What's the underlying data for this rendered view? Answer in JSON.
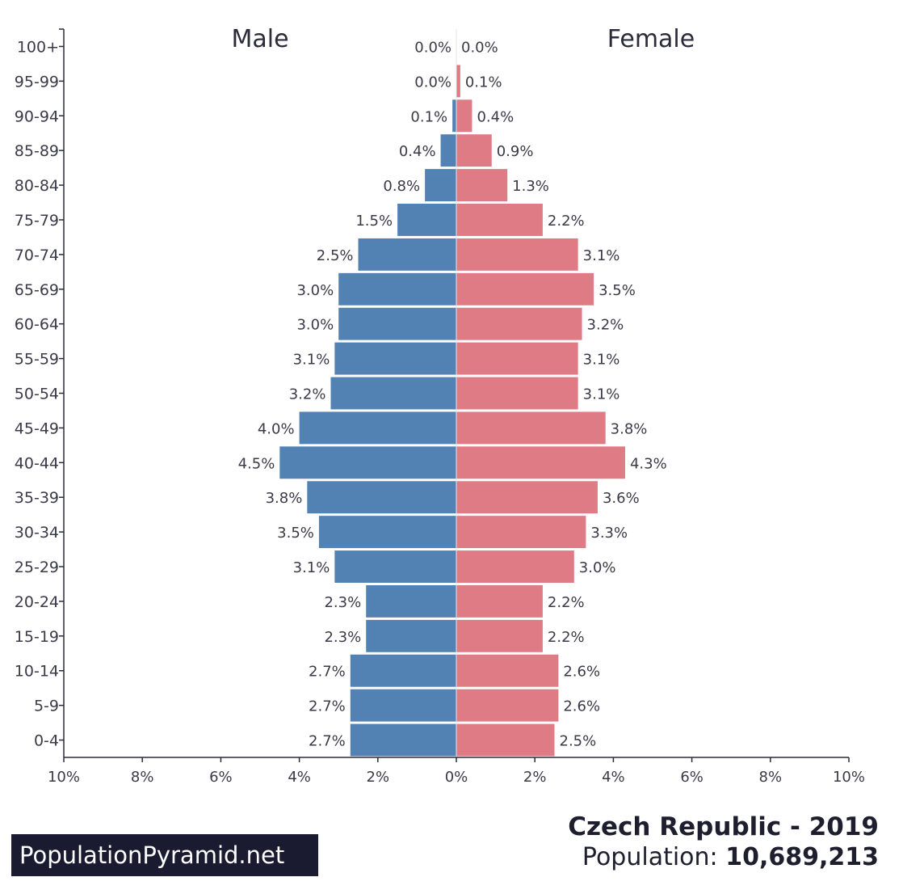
{
  "chart_data": {
    "type": "bar",
    "orientation": "horizontal-pyramid",
    "left_title": "Male",
    "right_title": "Female",
    "categories": [
      "100+",
      "95-99",
      "90-94",
      "85-89",
      "80-84",
      "75-79",
      "70-74",
      "65-69",
      "60-64",
      "55-59",
      "50-54",
      "45-49",
      "40-44",
      "35-39",
      "30-34",
      "25-29",
      "20-24",
      "15-19",
      "10-14",
      "5-9",
      "0-4"
    ],
    "series": [
      {
        "name": "Male",
        "color": "#5282b3",
        "values": [
          0.0,
          0.0,
          0.1,
          0.4,
          0.8,
          1.5,
          2.5,
          3.0,
          3.0,
          3.1,
          3.2,
          4.0,
          4.5,
          3.8,
          3.5,
          3.1,
          2.3,
          2.3,
          2.7,
          2.7,
          2.7
        ],
        "labels": [
          "0.0%",
          "0.0%",
          "0.1%",
          "0.4%",
          "0.8%",
          "1.5%",
          "2.5%",
          "3.0%",
          "3.0%",
          "3.1%",
          "3.2%",
          "4.0%",
          "4.5%",
          "3.8%",
          "3.5%",
          "3.1%",
          "2.3%",
          "2.3%",
          "2.7%",
          "2.7%",
          "2.7%"
        ]
      },
      {
        "name": "Female",
        "color": "#df7b85",
        "values": [
          0.0,
          0.1,
          0.4,
          0.9,
          1.3,
          2.2,
          3.1,
          3.5,
          3.2,
          3.1,
          3.1,
          3.8,
          4.3,
          3.6,
          3.3,
          3.0,
          2.2,
          2.2,
          2.6,
          2.6,
          2.5
        ],
        "labels": [
          "0.0%",
          "0.1%",
          "0.4%",
          "0.9%",
          "1.3%",
          "2.2%",
          "3.1%",
          "3.5%",
          "3.2%",
          "3.1%",
          "3.1%",
          "3.8%",
          "4.3%",
          "3.6%",
          "3.3%",
          "3.0%",
          "2.2%",
          "2.2%",
          "2.6%",
          "2.6%",
          "2.5%"
        ]
      }
    ],
    "xlim": [
      -10,
      10
    ],
    "x_ticks": [
      {
        "v": -10,
        "label": "10%"
      },
      {
        "v": -8,
        "label": "8%"
      },
      {
        "v": -6,
        "label": "6%"
      },
      {
        "v": -4,
        "label": "4%"
      },
      {
        "v": -2,
        "label": "2%"
      },
      {
        "v": 0,
        "label": "0%"
      },
      {
        "v": 2,
        "label": "2%"
      },
      {
        "v": 4,
        "label": "4%"
      },
      {
        "v": 6,
        "label": "6%"
      },
      {
        "v": 8,
        "label": "8%"
      },
      {
        "v": 10,
        "label": "10%"
      }
    ],
    "grid": false
  },
  "footer": {
    "country_year": "Czech Republic - 2019",
    "population_label": "Population:",
    "population_value": "10,689,213"
  },
  "brand": {
    "label": "PopulationPyramid.net"
  }
}
